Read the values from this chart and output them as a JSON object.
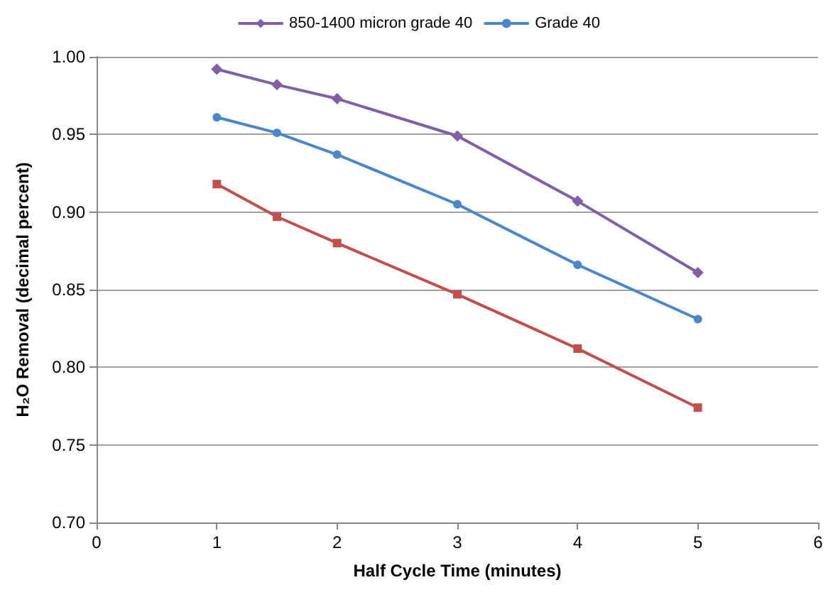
{
  "chart_data": {
    "type": "line",
    "xlabel": "Half Cycle Time (minutes)",
    "ylabel": "H₂O Removal (decimal percent)",
    "x": [
      1,
      1.5,
      2,
      3,
      4,
      5
    ],
    "series": [
      {
        "name": "850-1400 micron grade 40",
        "color": "#7f5fa6",
        "marker": "diamond",
        "values": [
          0.992,
          0.982,
          0.973,
          0.949,
          0.907,
          0.861
        ]
      },
      {
        "name": "Grade 40",
        "color": "#4a86c8",
        "marker": "circle",
        "values": [
          0.961,
          0.951,
          0.937,
          0.905,
          0.866,
          0.831
        ]
      },
      {
        "color": "#c0504d",
        "marker": "square",
        "values": [
          0.918,
          0.897,
          0.88,
          0.847,
          0.812,
          0.774
        ]
      }
    ],
    "xlim": [
      0,
      6
    ],
    "xticks": [
      0,
      1,
      2,
      3,
      4,
      5,
      6
    ],
    "ylim": [
      0.7,
      1.0
    ],
    "yticks": [
      {
        "value": 0.7,
        "label": "0.70"
      },
      0.75,
      {
        "value": 0.8,
        "label": "0.80"
      },
      0.85,
      {
        "value": 0.9,
        "label": "0.90"
      },
      0.95,
      {
        "value": 1,
        "label": "1.00"
      }
    ],
    "grid": "y",
    "legend": "top",
    "line_style": "solid"
  }
}
